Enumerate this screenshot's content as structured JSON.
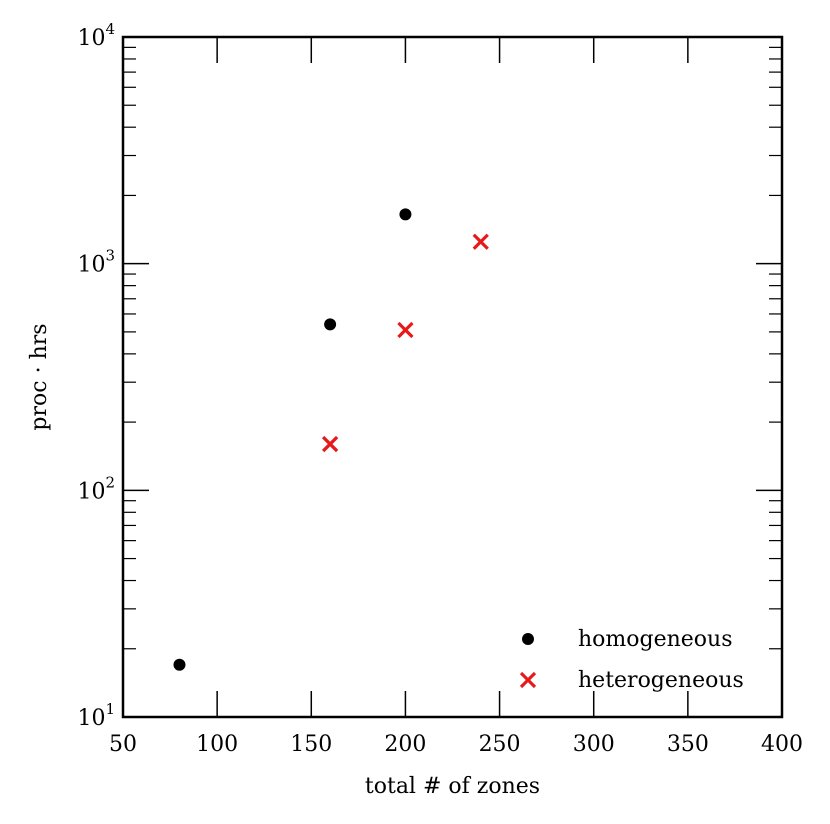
{
  "chart_data": {
    "type": "scatter",
    "xlabel": "total # of zones",
    "ylabel": "proc · hrs",
    "xlim": [
      50,
      400
    ],
    "ylim": [
      10,
      10000
    ],
    "yscale": "log",
    "x_ticks": [
      50,
      100,
      150,
      200,
      250,
      300,
      350,
      400
    ],
    "x_tick_labels": [
      "50",
      "100",
      "150",
      "200",
      "250",
      "300",
      "350",
      "400"
    ],
    "y_ticks": [
      10,
      100,
      1000,
      10000
    ],
    "y_tick_labels": [
      {
        "base": "10",
        "exp": "1"
      },
      {
        "base": "10",
        "exp": "2"
      },
      {
        "base": "10",
        "exp": "3"
      },
      {
        "base": "10",
        "exp": "4"
      }
    ],
    "legend_position": "lower-right",
    "grid": false,
    "series": [
      {
        "name": "homogeneous",
        "marker": "circle",
        "color": "#000000",
        "points": [
          {
            "x": 80,
            "y": 17
          },
          {
            "x": 160,
            "y": 540
          },
          {
            "x": 200,
            "y": 1650
          }
        ]
      },
      {
        "name": "heterogeneous",
        "marker": "x",
        "color": "#e8191a",
        "points": [
          {
            "x": 160,
            "y": 160
          },
          {
            "x": 200,
            "y": 510
          },
          {
            "x": 240,
            "y": 1250
          }
        ]
      }
    ]
  }
}
